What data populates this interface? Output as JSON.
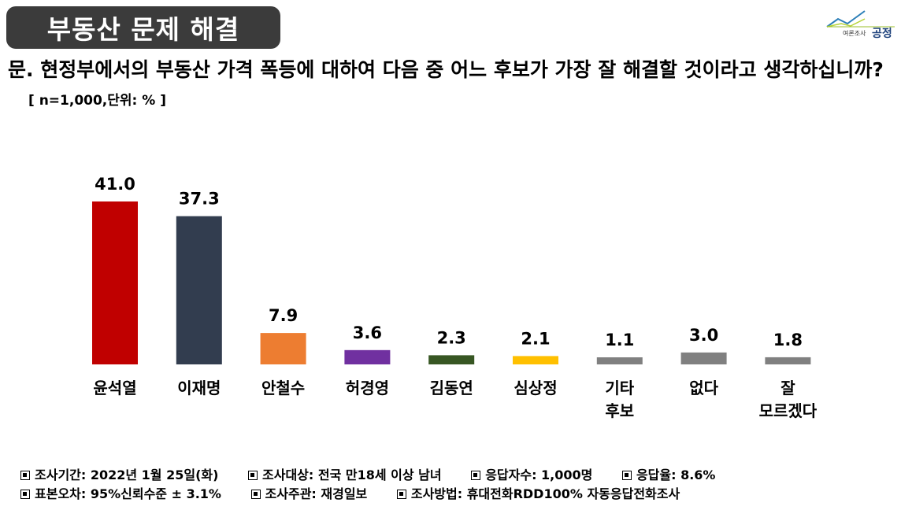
{
  "header": {
    "title": "부동산 문제 해결",
    "logo_small": "여론조사",
    "logo_big": "공정"
  },
  "question": {
    "text": "문. 현정부에서의 부동산 가격 폭등에 대하여 다음 중 어느 후보가 가장 잘 해결할 것이라고 생각하십니까?",
    "note": "[ n=1,000,단위: % ]"
  },
  "chart_data": {
    "type": "bar",
    "categories": [
      [
        "윤석열"
      ],
      [
        "이재명"
      ],
      [
        "안철수"
      ],
      [
        "허경영"
      ],
      [
        "김동연"
      ],
      [
        "심상정"
      ],
      [
        "기타",
        "후보"
      ],
      [
        "없다"
      ],
      [
        "잘",
        "모르겠다"
      ]
    ],
    "values": [
      41.0,
      37.3,
      7.9,
      3.6,
      2.3,
      2.1,
      1.1,
      3.0,
      1.8
    ],
    "value_labels": [
      "41.0",
      "37.3",
      "7.9",
      "3.6",
      "2.3",
      "2.1",
      "1.1",
      "3.0",
      "1.8"
    ],
    "colors": [
      "#c00000",
      "#323d4f",
      "#ed7d31",
      "#7030a0",
      "#375623",
      "#ffc000",
      "#808080",
      "#808080",
      "#808080"
    ],
    "title": "",
    "xlabel": "",
    "ylabel": "",
    "ylim": [
      0,
      41
    ],
    "grid": false
  },
  "footer": {
    "rows": [
      [
        "조사기간: 2022년 1월 25일(화)",
        "조사대상: 전국 만18세 이상 남녀",
        "응답자수: 1,000명",
        "응답율: 8.6%"
      ],
      [
        "표본오차: 95%신뢰수준 ± 3.1%",
        "조사주관: 재경일보",
        "조사방법: 휴대전화RDD100% 자동응답전화조사"
      ]
    ]
  }
}
